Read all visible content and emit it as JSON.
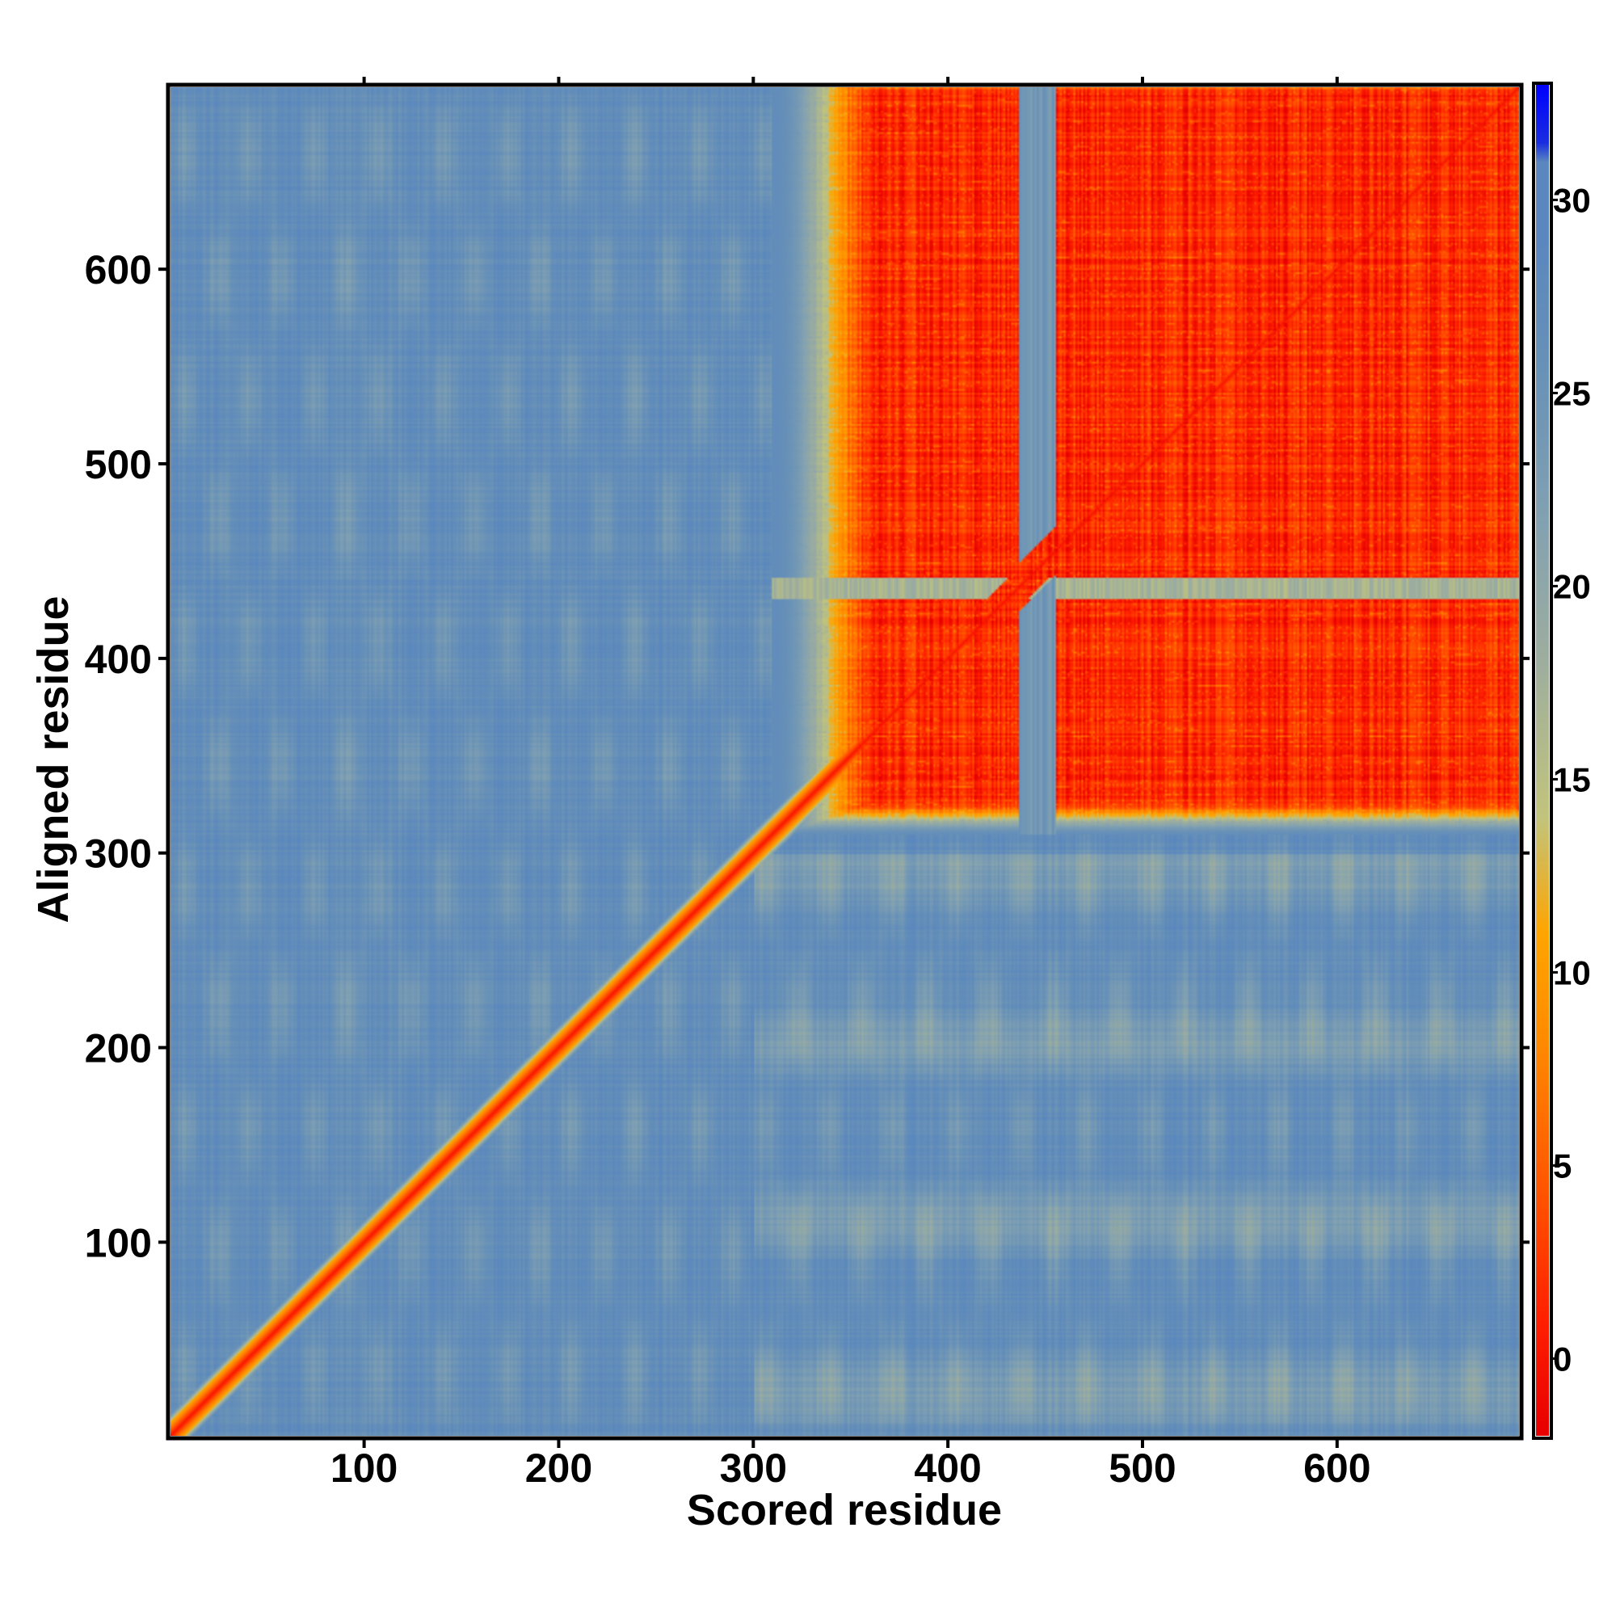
{
  "chart_data": {
    "type": "heatmap",
    "title": "",
    "xlabel": "Scored residue",
    "ylabel": "Aligned residue",
    "x_range": [
      1,
      693
    ],
    "y_range": [
      1,
      693
    ],
    "xticks": [
      100,
      200,
      300,
      400,
      500,
      600
    ],
    "yticks": [
      100,
      200,
      300,
      400,
      500,
      600
    ],
    "colorbar": {
      "range": [
        -2,
        33
      ],
      "ticks": [
        0,
        5,
        10,
        15,
        20,
        25,
        30
      ],
      "stops": [
        {
          "value": -2.0,
          "color": "#e60000"
        },
        {
          "value": 1.0,
          "color": "#ff2000"
        },
        {
          "value": 4.0,
          "color": "#ff5000"
        },
        {
          "value": 8.0,
          "color": "#ff8800"
        },
        {
          "value": 11.0,
          "color": "#ffa500"
        },
        {
          "value": 14.0,
          "color": "#c2c47c"
        },
        {
          "value": 18.0,
          "color": "#9eae9e"
        },
        {
          "value": 22.0,
          "color": "#80a0b2"
        },
        {
          "value": 26.0,
          "color": "#6690b8"
        },
        {
          "value": 29.0,
          "color": "#5a87be"
        },
        {
          "value": 31.0,
          "color": "#5a87be"
        },
        {
          "value": 31.5,
          "color": "#1a2ee0"
        },
        {
          "value": 33.0,
          "color": "#0000ff"
        }
      ]
    },
    "structure": {
      "diagonal_value": 0,
      "ordered_block_start": 310,
      "ordered_block_end": 693,
      "flexible_linker": [
        437,
        455
      ],
      "ordered_block_value": 1.5,
      "background_value": 27
    }
  }
}
